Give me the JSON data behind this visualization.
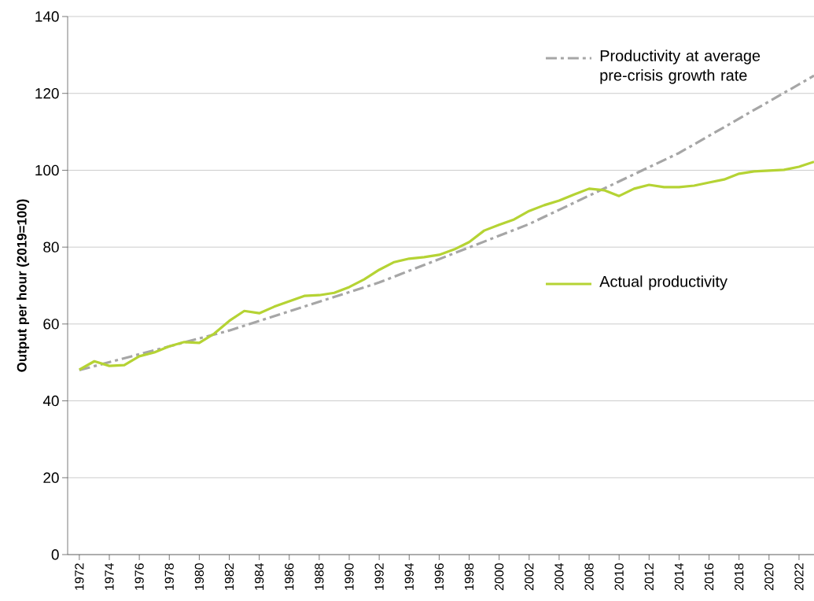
{
  "chart_data": {
    "type": "line",
    "ylabel": "Output per hour (2019=100)",
    "categories": [
      "1972",
      null,
      "1974",
      null,
      "1976",
      null,
      "1978",
      null,
      "1980",
      null,
      "1982",
      null,
      "1984",
      null,
      "1986",
      null,
      "1988",
      null,
      "1990",
      null,
      "1992",
      null,
      "1994",
      null,
      "1996",
      null,
      "1998",
      null,
      "2000",
      null,
      "2002",
      null,
      "2004",
      null,
      "2008",
      null,
      "2010",
      null,
      "2012",
      null,
      "2014",
      null,
      "2016",
      null,
      "2018",
      null,
      "2020",
      null,
      "2022",
      null
    ],
    "series": [
      {
        "name": "Productivity at average pre-crisis growth rate",
        "color": "#a6a6a6",
        "line_style": "dashdot",
        "values": [
          48.0,
          null,
          null,
          null,
          null,
          null,
          null,
          null,
          null,
          null,
          58.3,
          null,
          null,
          null,
          null,
          null,
          null,
          null,
          null,
          null,
          70.8,
          null,
          null,
          null,
          null,
          null,
          null,
          null,
          null,
          null,
          86.0,
          null,
          null,
          null,
          null,
          null,
          null,
          null,
          null,
          null,
          104.5,
          null,
          null,
          null,
          null,
          null,
          null,
          null,
          null,
          124.6
        ]
      },
      {
        "name": "Actual productivity",
        "color": "#b5d334",
        "line_style": "solid",
        "values": [
          48.1,
          50.3,
          49.1,
          49.3,
          51.6,
          52.6,
          54.2,
          55.3,
          55.1,
          57.5,
          60.8,
          63.4,
          62.8,
          64.5,
          65.9,
          67.3,
          67.5,
          68.1,
          69.6,
          71.6,
          74.1,
          76.1,
          77.0,
          77.4,
          78.0,
          79.4,
          81.3,
          84.3,
          85.8,
          87.2,
          89.4,
          90.9,
          92.1,
          93.7,
          95.2,
          94.8,
          93.3,
          95.2,
          96.2,
          95.6,
          95.6,
          96.0,
          96.8,
          97.6,
          99.1,
          99.7,
          99.9,
          100.1,
          100.9,
          102.2
        ]
      }
    ],
    "ylim": [
      0,
      140
    ],
    "yticks": [
      0,
      20,
      40,
      60,
      80,
      100,
      120,
      140
    ],
    "grid": "y",
    "legend": "right",
    "marker": "none"
  }
}
